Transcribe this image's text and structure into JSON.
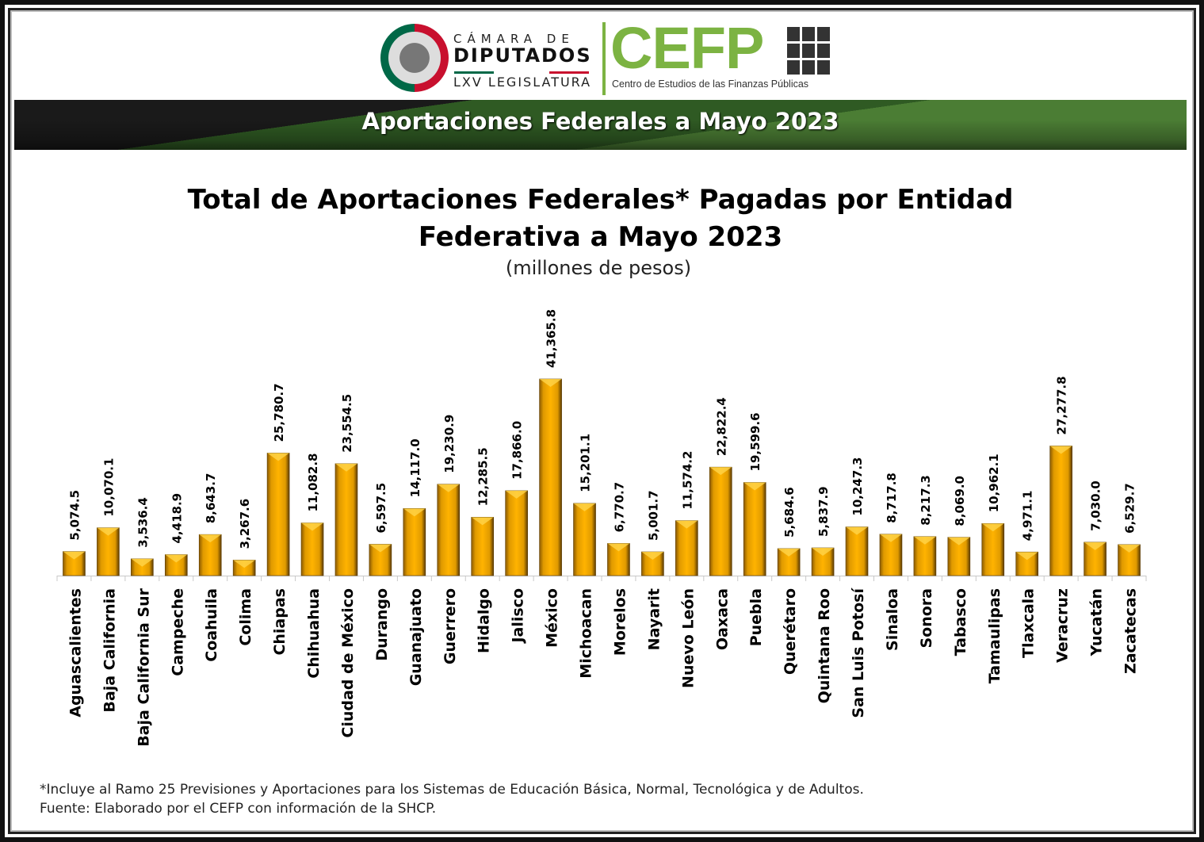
{
  "header": {
    "camara": "CÁMARA DE",
    "diputados": "DIPUTADOS",
    "legislatura": "LXV LEGISLATURA",
    "cefp": "CEFP",
    "cefp_full": "Centro de Estudios de las Finanzas Públicas",
    "banner_title": "Aportaciones Federales a Mayo 2023",
    "colors": {
      "cefp_green": "#7cb342",
      "bar": "#f2a900"
    }
  },
  "chart_data": {
    "type": "bar",
    "title_line1": "Total de Aportaciones Federales* Pagadas por Entidad",
    "title_line2": "Federativa a Mayo 2023",
    "subtitle": "(millones de pesos)",
    "categories": [
      "Aguascalientes",
      "Baja California",
      "Baja California Sur",
      "Campeche",
      "Coahuila",
      "Colima",
      "Chiapas",
      "Chihuahua",
      "Ciudad de México",
      "Durango",
      "Guanajuato",
      "Guerrero",
      "Hidalgo",
      "Jalisco",
      "México",
      "Michoacan",
      "Morelos",
      "Nayarit",
      "Nuevo León",
      "Oaxaca",
      "Puebla",
      "Querétaro",
      "Quintana Roo",
      "San Luis Potosí",
      "Sinaloa",
      "Sonora",
      "Tabasco",
      "Tamaulipas",
      "Tlaxcala",
      "Veracruz",
      "Yucatán",
      "Zacatecas"
    ],
    "values": [
      5074.5,
      10070.1,
      3536.4,
      4418.9,
      8643.7,
      3267.6,
      25780.7,
      11082.8,
      23554.5,
      6597.5,
      14117.0,
      19230.9,
      12285.5,
      17866.0,
      41365.8,
      15201.1,
      6770.7,
      5001.7,
      11574.2,
      22822.4,
      19599.6,
      5684.6,
      5837.9,
      10247.3,
      8717.8,
      8217.3,
      8069.0,
      10962.1,
      4971.1,
      27277.8,
      7030.0,
      6529.7
    ],
    "data_labels": [
      "5,074.5",
      "10,070.1",
      "3,536.4",
      "4,418.9",
      "8,643.7",
      "3,267.6",
      "25,780.7",
      "11,082.8",
      "23,554.5",
      "6,597.5",
      "14,117.0",
      "19,230.9",
      "12,285.5",
      "17,866.0",
      "41,365.8",
      "15,201.1",
      "6,770.7",
      "5,001.7",
      "11,574.2",
      "22,822.4",
      "19,599.6",
      "5,684.6",
      "5,837.9",
      "10,247.3",
      "8,717.8",
      "8,217.3",
      "8,069.0",
      "10,962.1",
      "4,971.1",
      "27,277.8",
      "7,030.0",
      "6,529.7"
    ],
    "ylim": [
      0,
      41365.8
    ],
    "grid": false,
    "legend": "none"
  },
  "footnotes": {
    "note": "*Incluye al Ramo 25 Previsiones y Aportaciones para los Sistemas de Educación Básica, Normal, Tecnológica y de Adultos.",
    "source": "Fuente: Elaborado por el CEFP con información de la SHCP."
  }
}
